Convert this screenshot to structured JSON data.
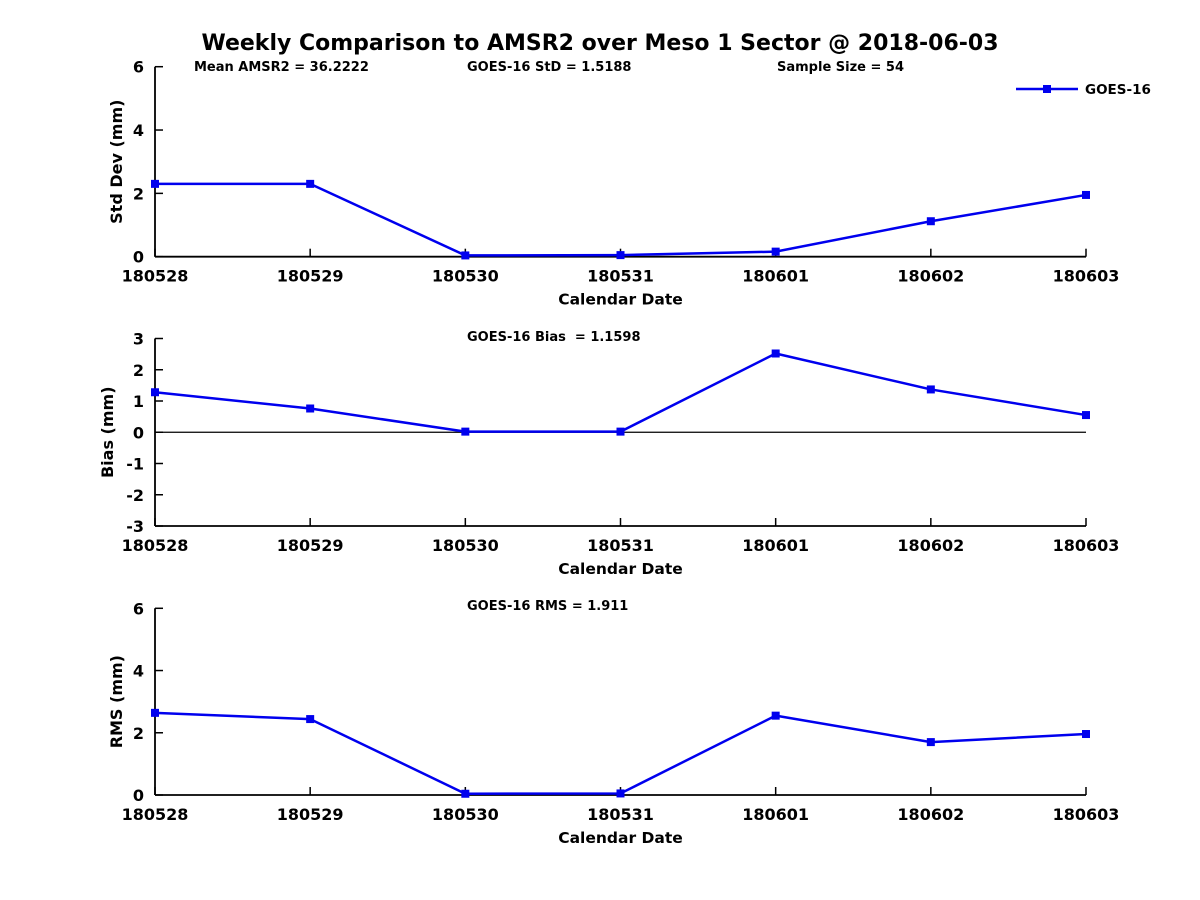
{
  "title": "Weekly Comparison to AMSR2 over Meso 1 Sector @ 2018-06-03",
  "colors": {
    "line": "#0000EE",
    "axis": "#000000",
    "background": "#FFFFFF"
  },
  "chart_data": [
    {
      "type": "line",
      "title": "Std Dev subplot",
      "categories": [
        "180528",
        "180529",
        "180530",
        "180531",
        "180601",
        "180602",
        "180603"
      ],
      "series": [
        {
          "name": "GOES-16",
          "values": [
            2.3,
            2.3,
            0.04,
            0.05,
            0.16,
            1.12,
            1.95
          ]
        }
      ],
      "xlabel": "Calendar Date",
      "ylabel": "Std Dev (mm)",
      "ylim": [
        0,
        6
      ],
      "yticks": [
        "0",
        "2",
        "4",
        "6"
      ],
      "annotations": [
        "Mean AMSR2 = 36.2222",
        "GOES-16 StD = 1.5188",
        "Sample Size = 54"
      ],
      "zero_line": false,
      "grid": false,
      "marker": "square",
      "legend": {
        "label": "GOES-16",
        "position": "top-right"
      }
    },
    {
      "type": "line",
      "title": "Bias subplot",
      "categories": [
        "180528",
        "180529",
        "180530",
        "180531",
        "180601",
        "180602",
        "180603"
      ],
      "series": [
        {
          "name": "GOES-16",
          "values": [
            1.28,
            0.76,
            0.02,
            0.02,
            2.52,
            1.37,
            0.55
          ]
        }
      ],
      "xlabel": "Calendar Date",
      "ylabel": "Bias (mm)",
      "ylim": [
        -3,
        3
      ],
      "yticks": [
        "-3",
        "-2",
        "-1",
        "0",
        "1",
        "2",
        "3"
      ],
      "annotations": [
        "GOES-16 Bias  = 1.1598"
      ],
      "zero_line": true,
      "grid": false,
      "marker": "square"
    },
    {
      "type": "line",
      "title": "RMS subplot",
      "categories": [
        "180528",
        "180529",
        "180530",
        "180531",
        "180601",
        "180602",
        "180603"
      ],
      "series": [
        {
          "name": "GOES-16",
          "values": [
            2.64,
            2.44,
            0.04,
            0.05,
            2.55,
            1.7,
            1.96
          ]
        }
      ],
      "xlabel": "Calendar Date",
      "ylabel": "RMS (mm)",
      "ylim": [
        0,
        6
      ],
      "yticks": [
        "0",
        "2",
        "4",
        "6"
      ],
      "annotations": [
        "GOES-16 RMS = 1.911"
      ],
      "zero_line": false,
      "grid": false,
      "marker": "square"
    }
  ]
}
